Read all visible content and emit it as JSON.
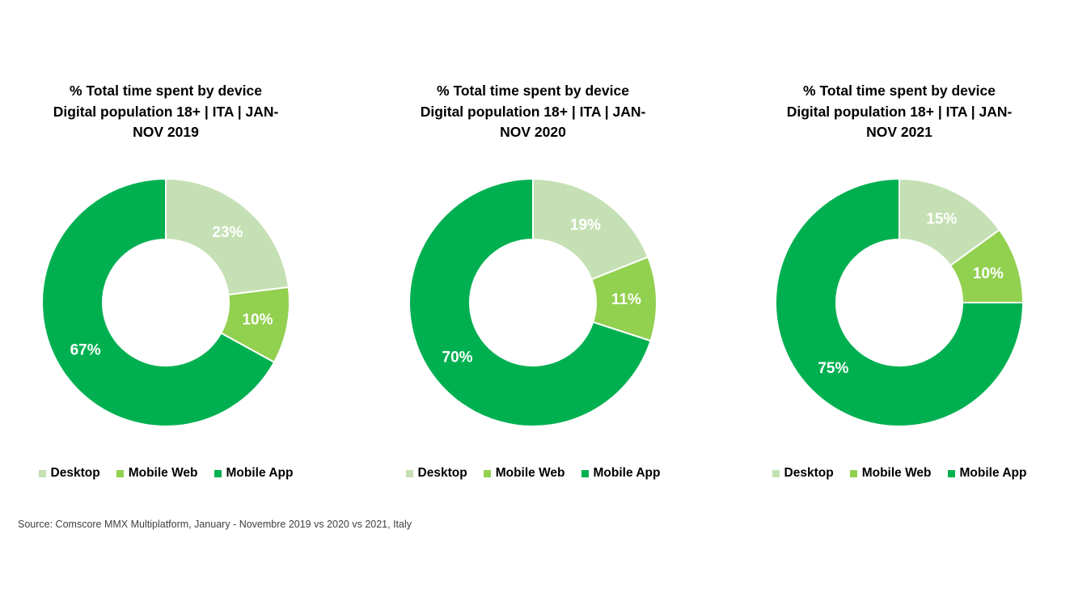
{
  "colors": {
    "Desktop": "#c5e0b4",
    "Mobile Web": "#92d050",
    "Mobile App": "#00b050"
  },
  "source": "Source: Comscore MMX Multiplatform, January - Novembre 2019 vs 2020 vs 2021, Italy",
  "chart_data": [
    {
      "type": "pie",
      "title_lines": [
        "% Total time spent by device",
        "Digital population 18+ | ITA | JAN-",
        "NOV 2019"
      ],
      "categories": [
        "Desktop",
        "Mobile Web",
        "Mobile App"
      ],
      "values": [
        23,
        10,
        67
      ],
      "labels": [
        "23%",
        "10%",
        "67%"
      ],
      "legend": [
        "Desktop",
        "Mobile Web",
        "Mobile App"
      ],
      "legend_position": "bottom"
    },
    {
      "type": "pie",
      "title_lines": [
        "% Total time spent by device",
        "Digital population 18+ | ITA | JAN-",
        "NOV 2020"
      ],
      "categories": [
        "Desktop",
        "Mobile Web",
        "Mobile App"
      ],
      "values": [
        19,
        11,
        70
      ],
      "labels": [
        "19%",
        "11%",
        "70%"
      ],
      "legend": [
        "Desktop",
        "Mobile Web",
        "Mobile App"
      ],
      "legend_position": "bottom"
    },
    {
      "type": "pie",
      "title_lines": [
        "% Total time spent by device",
        "Digital population 18+ | ITA | JAN-",
        "NOV 2021"
      ],
      "categories": [
        "Desktop",
        "Mobile Web",
        "Mobile App"
      ],
      "values": [
        15,
        10,
        75
      ],
      "labels": [
        "15%",
        "10%",
        "75%"
      ],
      "legend": [
        "Desktop",
        "Mobile Web",
        "Mobile App"
      ],
      "legend_position": "bottom"
    }
  ]
}
